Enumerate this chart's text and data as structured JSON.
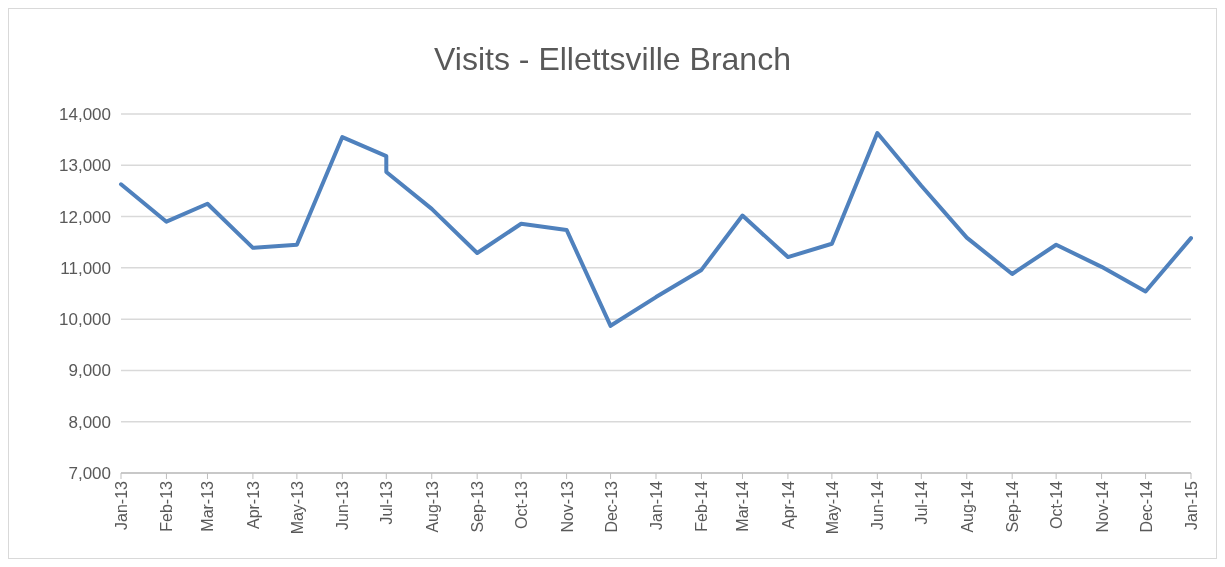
{
  "chart_data": {
    "type": "line",
    "title": "Visits - Ellettsville Branch",
    "x": [
      "2013-01",
      "2013-02",
      "2013-03",
      "2013-04",
      "2013-05",
      "2013-06",
      "2013-07",
      "2013-07",
      "2013-08",
      "2013-09",
      "2013-10",
      "2013-11",
      "2013-12",
      "2014-01",
      "2014-02",
      "2014-03",
      "2014-04",
      "2014-05",
      "2014-06",
      "2014-07",
      "2014-08",
      "2014-09",
      "2014-10",
      "2014-11",
      "2014-12",
      "2015-01"
    ],
    "series": [
      {
        "color": "#4f81bd",
        "values": [
          12630,
          11900,
          12250,
          11390,
          11450,
          13550,
          13180,
          12870,
          12150,
          11290,
          11860,
          11740,
          9870,
          10430,
          10960,
          12020,
          11210,
          11470,
          13630,
          12600,
          11590,
          10880,
          11450,
          11020,
          10540,
          11580
        ]
      }
    ],
    "xlim": [
      "2013-01",
      "2015-01"
    ],
    "xticks": [
      {
        "value": "2013-01",
        "label": "Jan-13"
      },
      {
        "value": "2013-02",
        "label": "Feb-13"
      },
      {
        "value": "2013-03",
        "label": "Mar-13"
      },
      {
        "value": "2013-04",
        "label": "Apr-13"
      },
      {
        "value": "2013-05",
        "label": "May-13"
      },
      {
        "value": "2013-06",
        "label": "Jun-13"
      },
      {
        "value": "2013-07",
        "label": "Jul-13"
      },
      {
        "value": "2013-08",
        "label": "Aug-13"
      },
      {
        "value": "2013-09",
        "label": "Sep-13"
      },
      {
        "value": "2013-10",
        "label": "Oct-13"
      },
      {
        "value": "2013-11",
        "label": "Nov-13"
      },
      {
        "value": "2013-12",
        "label": "Dec-13"
      },
      {
        "value": "2014-01",
        "label": "Jan-14"
      },
      {
        "value": "2014-02",
        "label": "Feb-14"
      },
      {
        "value": "2014-03",
        "label": "Mar-14"
      },
      {
        "value": "2014-04",
        "label": "Apr-14"
      },
      {
        "value": "2014-05",
        "label": "May-14"
      },
      {
        "value": "2014-06",
        "label": "Jun-14"
      },
      {
        "value": "2014-07",
        "label": "Jul-14"
      },
      {
        "value": "2014-08",
        "label": "Aug-14"
      },
      {
        "value": "2014-09",
        "label": "Sep-14"
      },
      {
        "value": "2014-10",
        "label": "Oct-14"
      },
      {
        "value": "2014-11",
        "label": "Nov-14"
      },
      {
        "value": "2014-12",
        "label": "Dec-14"
      },
      {
        "value": "2015-01",
        "label": "Jan-15"
      }
    ],
    "ylim": [
      7000,
      14000
    ],
    "yticks": [
      {
        "value": 7000,
        "label": "7,000"
      },
      {
        "value": 8000,
        "label": "8,000"
      },
      {
        "value": 9000,
        "label": "9,000"
      },
      {
        "value": 10000,
        "label": "10,000"
      },
      {
        "value": 11000,
        "label": "11,000"
      },
      {
        "value": 12000,
        "label": "12,000"
      },
      {
        "value": 13000,
        "label": "13,000"
      },
      {
        "value": 14000,
        "label": "14,000"
      }
    ],
    "grid": "y",
    "marker": "none",
    "line_style": "solid"
  }
}
